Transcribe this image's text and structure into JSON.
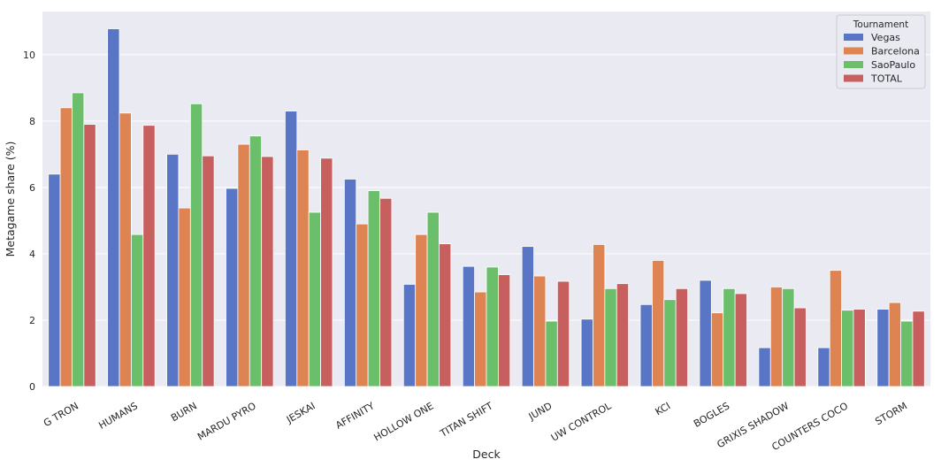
{
  "chart_data": {
    "type": "bar",
    "xlabel": "Deck",
    "ylabel": "Metagame share (%)",
    "ylim": [
      0,
      11.3
    ],
    "yticks": [
      0,
      2,
      4,
      6,
      8,
      10
    ],
    "grid": true,
    "legend": {
      "title": "Tournament",
      "placement": "top-right"
    },
    "categories": [
      "G TRON",
      "HUMANS",
      "BURN",
      "MARDU PYRO",
      "JESKAI",
      "AFFINITY",
      "HOLLOW ONE",
      "TITAN SHIFT",
      "JUND",
      "UW CONTROL",
      "KCI",
      "BOGLES",
      "GRIXIS SHADOW",
      "COUNTERS COCO",
      "STORM"
    ],
    "series": [
      {
        "name": "Vegas",
        "color": "#5975c6",
        "values": [
          6.4,
          10.78,
          7.0,
          5.97,
          8.3,
          6.25,
          3.08,
          3.62,
          4.22,
          2.03,
          2.47,
          3.2,
          1.17,
          1.17,
          2.33
        ]
      },
      {
        "name": "Barcelona",
        "color": "#dd8452",
        "values": [
          8.4,
          8.24,
          5.38,
          7.3,
          7.13,
          4.9,
          4.58,
          2.85,
          3.33,
          4.28,
          3.8,
          2.22,
          3.0,
          3.5,
          2.53
        ]
      },
      {
        "name": "SaoPaulo",
        "color": "#6bbf6b",
        "values": [
          8.85,
          4.58,
          8.52,
          7.55,
          5.25,
          5.9,
          5.25,
          3.6,
          1.97,
          2.95,
          2.62,
          2.95,
          2.95,
          2.3,
          1.97
        ]
      },
      {
        "name": "TOTAL",
        "color": "#c85f5f",
        "values": [
          7.9,
          7.87,
          6.95,
          6.93,
          6.88,
          5.67,
          4.3,
          3.37,
          3.17,
          3.1,
          2.95,
          2.8,
          2.37,
          2.33,
          2.27
        ]
      }
    ]
  }
}
